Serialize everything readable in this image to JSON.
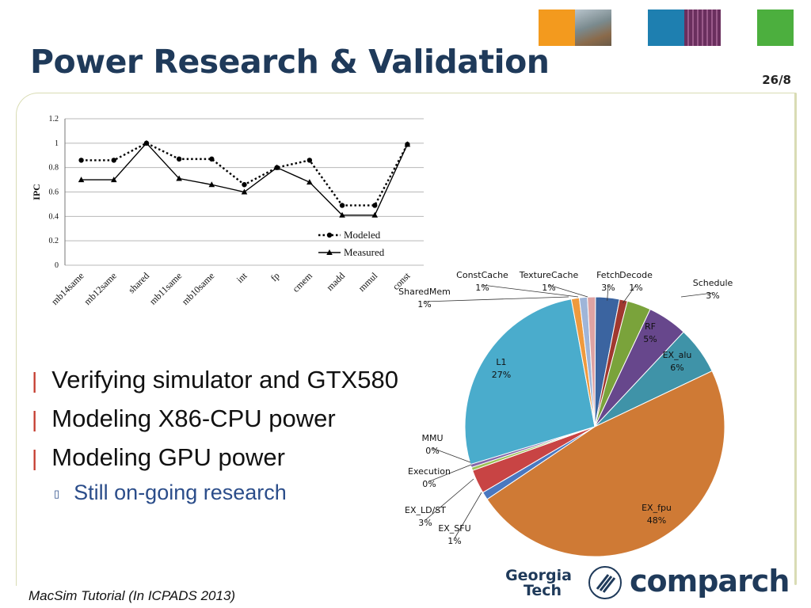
{
  "slide": {
    "title": "Power Research & Validation",
    "page_number": "26/8",
    "footer": "MacSim Tutorial (In ICPADS 2013)",
    "bullets": [
      {
        "level": 1,
        "text": "Verifying simulator and GTX580"
      },
      {
        "level": 1,
        "text": "Modeling X86-CPU power"
      },
      {
        "level": 1,
        "text": "Modeling GPU power"
      },
      {
        "level": 2,
        "text": "Still on-going research"
      }
    ],
    "logos": {
      "gt_line1": "Georgia",
      "gt_line2": "Tech",
      "comparch": "comparch"
    },
    "header_squares": [
      {
        "color": "#f39a1e"
      },
      {
        "color": "#8a8a86"
      },
      {
        "color": "#1e7fb0"
      },
      {
        "color": "#7a3a6b"
      },
      {
        "color": "#4caf3e"
      }
    ]
  },
  "chart_data": [
    {
      "type": "line",
      "title": "",
      "xlabel": "",
      "ylabel": "IPC",
      "ylim": [
        0,
        1.2
      ],
      "yticks": [
        "0",
        "0.2",
        "0.4",
        "0.6",
        "0.8",
        "1",
        "1.2"
      ],
      "categories": [
        "mb14same",
        "mb12same",
        "shared",
        "mb11same",
        "mb10same",
        "int",
        "fp",
        "cmem",
        "madd",
        "mmul",
        "const"
      ],
      "grid": true,
      "legend": "bottom-right",
      "series": [
        {
          "name": "Modeled",
          "style": "dotted",
          "marker": "circle",
          "values": [
            0.86,
            0.86,
            1.0,
            0.87,
            0.87,
            0.66,
            0.8,
            0.86,
            0.49,
            0.49,
            0.99
          ]
        },
        {
          "name": "Measured",
          "style": "solid",
          "marker": "triangle",
          "values": [
            0.7,
            0.7,
            1.0,
            0.71,
            0.66,
            0.6,
            0.8,
            0.68,
            0.41,
            0.41,
            0.99
          ]
        }
      ]
    },
    {
      "type": "pie",
      "title": "",
      "slices": [
        {
          "label": "Fetch",
          "value": 3,
          "pct": "3%",
          "color": "#3b64a0"
        },
        {
          "label": "Decode",
          "value": 1,
          "pct": "1%",
          "color": "#a0382f"
        },
        {
          "label": "Schedule",
          "value": 3,
          "pct": "3%",
          "color": "#7aa33b"
        },
        {
          "label": "RF",
          "value": 5,
          "pct": "5%",
          "color": "#67478c"
        },
        {
          "label": "EX_alu",
          "value": 6,
          "pct": "6%",
          "color": "#3f93a8"
        },
        {
          "label": "EX_fpu",
          "value": 48,
          "pct": "48%",
          "color": "#cf7a35"
        },
        {
          "label": "EX_SFU",
          "value": 1,
          "pct": "1%",
          "color": "#4a78c0"
        },
        {
          "label": "EX_LD/ST",
          "value": 3,
          "pct": "3%",
          "color": "#c84444"
        },
        {
          "label": "Execution",
          "value": 0.4,
          "pct": "0%",
          "color": "#9cc357"
        },
        {
          "label": "MMU",
          "value": 0.4,
          "pct": "0%",
          "color": "#8466a9"
        },
        {
          "label": "L1",
          "value": 27,
          "pct": "27%",
          "color": "#4aaccc"
        },
        {
          "label": "SharedMem",
          "value": 1,
          "pct": "1%",
          "color": "#ef9a3e"
        },
        {
          "label": "ConstCache",
          "value": 1,
          "pct": "1%",
          "color": "#9fb5d8"
        },
        {
          "label": "TextureCache",
          "value": 1,
          "pct": "1%",
          "color": "#dea3a3"
        }
      ]
    }
  ]
}
